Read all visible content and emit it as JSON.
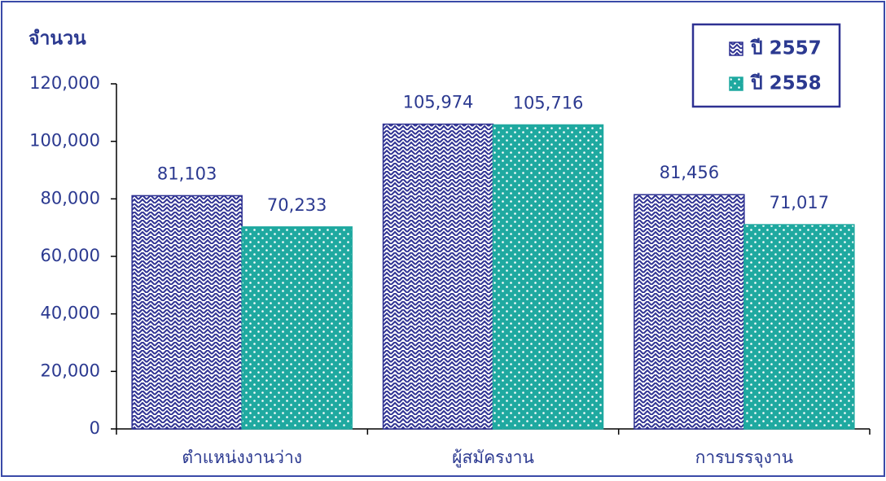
{
  "chart_data": {
    "type": "bar",
    "y_label": "จำนวน",
    "categories": [
      "ตำแหน่งงานว่าง",
      "ผู้สมัครงาน",
      "การบรรจุงาน"
    ],
    "series": [
      {
        "name": "ปี 2557",
        "color": "#2e3192",
        "values": [
          81103,
          105974,
          81456
        ],
        "value_labels": [
          "81,103",
          "105,974",
          "81,456"
        ]
      },
      {
        "name": "ปี 2558",
        "color": "#1fa9a0",
        "values": [
          70233,
          105716,
          71017
        ],
        "value_labels": [
          "70,233",
          "105,716",
          "71,017"
        ]
      }
    ],
    "ylim": [
      0,
      120000
    ],
    "yticks": [
      0,
      {
        "value": 20000,
        "label": "20,000"
      },
      {
        "value": 40000,
        "label": "40,000"
      },
      {
        "value": 60000,
        "label": "60,000"
      },
      {
        "value": 80000,
        "label": "80,000"
      },
      {
        "value": 100000,
        "label": "100,000"
      },
      {
        "value": 120000,
        "label": "120,000"
      }
    ],
    "legend": "top-right"
  }
}
